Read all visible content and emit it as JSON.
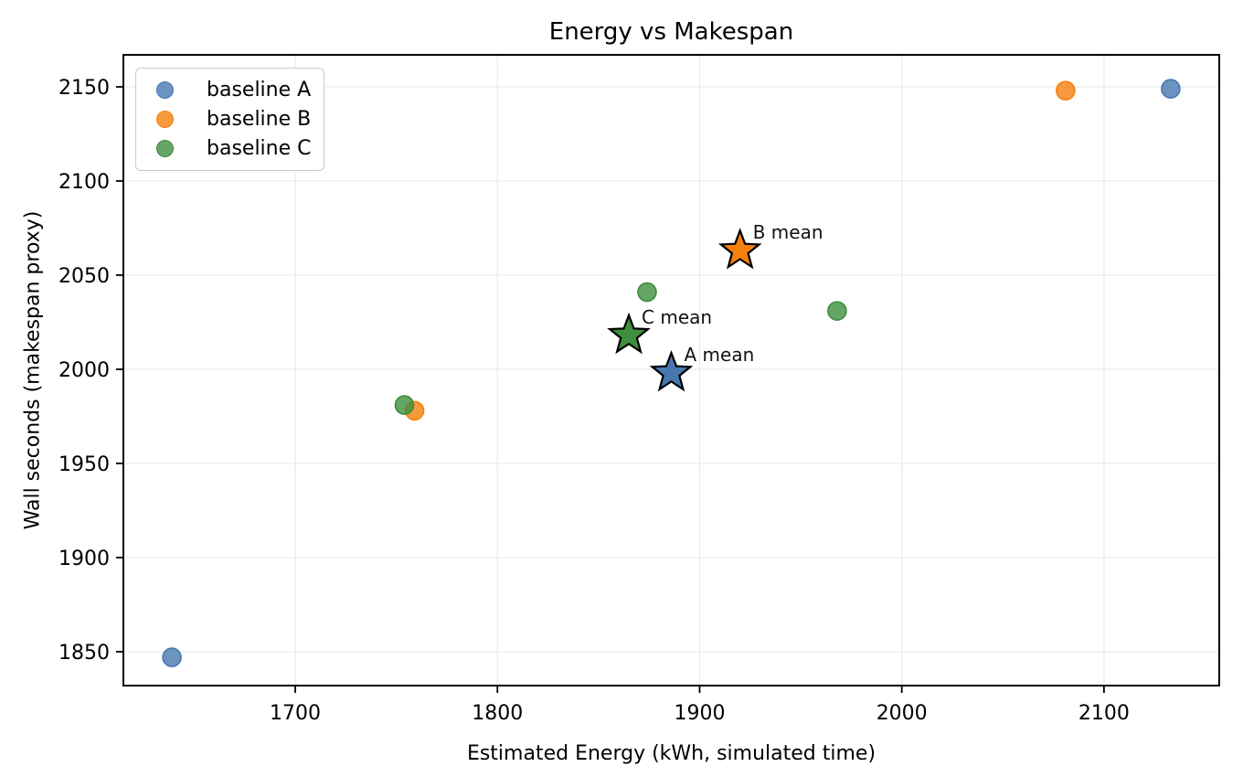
{
  "chart_data": {
    "type": "scatter",
    "title": "Energy vs Makespan",
    "xlabel": "Estimated Energy (kWh, simulated time)",
    "ylabel": "Wall seconds (makespan proxy)",
    "xlim": [
      1615,
      2157
    ],
    "ylim": [
      1832,
      2167
    ],
    "xticks": [
      1700,
      1800,
      1900,
      2000,
      2100
    ],
    "yticks": [
      1850,
      1900,
      1950,
      2000,
      2050,
      2100,
      2150
    ],
    "grid": true,
    "grid_color": "#e9e9e9",
    "axis_color": "#000000",
    "legend_position": "upper-left",
    "series": [
      {
        "name": "baseline A",
        "color": "#4878B0",
        "points": [
          [
            1639,
            1847
          ],
          [
            2133,
            2149
          ]
        ]
      },
      {
        "name": "baseline B",
        "color": "#F5800E",
        "points": [
          [
            1759,
            1978
          ],
          [
            2081,
            2148
          ]
        ]
      },
      {
        "name": "baseline C",
        "color": "#3E8E3E",
        "points": [
          [
            1754,
            1981
          ],
          [
            1874,
            2041
          ],
          [
            1968,
            2031
          ]
        ]
      }
    ],
    "means": [
      {
        "label": "A mean",
        "color": "#4878B0",
        "x": 1886,
        "y": 1998
      },
      {
        "label": "B mean",
        "color": "#F5800E",
        "x": 1920,
        "y": 2063
      },
      {
        "label": "C mean",
        "color": "#3E8E3E",
        "x": 1865,
        "y": 2018
      }
    ]
  }
}
